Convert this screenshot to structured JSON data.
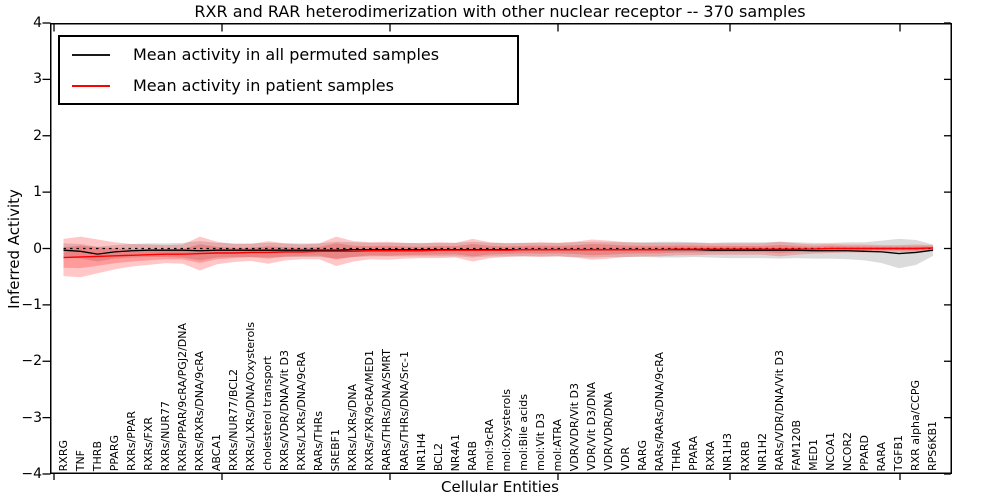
{
  "title": "RXR and RAR heterodimerization with other nuclear receptor -- 370 samples",
  "axes": {
    "ylabel": "Inferred Activity",
    "xlabel": "Cellular Entities",
    "ylim": [
      -4,
      4
    ],
    "yticks": [
      4,
      3,
      2,
      1,
      0,
      -1,
      -2,
      -3,
      -4
    ],
    "ytick_labels": [
      "4",
      "3",
      "2",
      "1",
      "0",
      "−1",
      "−2",
      "−3",
      "−4"
    ]
  },
  "legend": {
    "items": [
      {
        "label": "Mean activity in all permuted samples",
        "color": "#1a1a1a"
      },
      {
        "label": "Mean activity in patient samples",
        "color": "#ff0000"
      }
    ]
  },
  "chart_data": {
    "type": "line",
    "title": "RXR and RAR heterodimerization with other nuclear receptor -- 370 samples",
    "xlabel": "Cellular Entities",
    "ylabel": "Inferred Activity",
    "ylim": [
      -4,
      4
    ],
    "grid": false,
    "legend_position": "upper left",
    "categories": [
      "RXRG",
      "TNF",
      "THRB",
      "PPARG",
      "RXRs/PPAR",
      "RXRs/FXR",
      "RXRs/NUR77",
      "RXRs/PPAR/9cRA/PGJ2/DNA",
      "RXRs/RXRs/DNA/9cRA",
      "ABCA1",
      "RXRs/NUR77/BCL2",
      "RXRs/LXRs/DNA/Oxysterols",
      "cholesterol transport",
      "RXRs/VDR/DNA/Vit D3",
      "RXRs/LXRs/DNA/9cRA",
      "RARs/THRs",
      "SREBF1",
      "RXRs/LXRs/DNA",
      "RXRs/FXR/9cRA/MED1",
      "RARs/THRs/DNA/SMRT",
      "RARs/THRs/DNA/Src-1",
      "NR1H4",
      "BCL2",
      "NR4A1",
      "RARB",
      "mol:9cRA",
      "mol:Oxysterols",
      "mol:Bile acids",
      "mol:Vit D3",
      "mol:ATRA",
      "VDR/VDR/Vit D3",
      "VDR/Vit D3/DNA",
      "VDR/VDR/DNA",
      "VDR",
      "RARG",
      "RARs/RARs/DNA/9cRA",
      "THRA",
      "PPARA",
      "RXRA",
      "NR1H3",
      "RXRB",
      "NR1H2",
      "RARs/VDR/DNA/Vit D3",
      "FAM120B",
      "MED1",
      "NCOA1",
      "NCOR2",
      "PPARD",
      "RARA",
      "TGFB1",
      "RXR alpha/CCPG",
      "RPS6KB1"
    ],
    "series": [
      {
        "name": "Mean activity in all permuted samples",
        "color": "#000000",
        "band_color": "rgba(90,90,90,0.22)",
        "values": [
          -0.03,
          -0.05,
          -0.1,
          -0.06,
          -0.04,
          -0.03,
          -0.03,
          -0.03,
          -0.04,
          -0.03,
          -0.03,
          -0.03,
          -0.03,
          -0.03,
          -0.03,
          -0.03,
          -0.03,
          -0.02,
          -0.02,
          -0.02,
          -0.02,
          -0.02,
          -0.02,
          -0.02,
          -0.02,
          -0.02,
          -0.02,
          -0.02,
          -0.02,
          -0.02,
          -0.02,
          -0.02,
          -0.02,
          -0.02,
          -0.02,
          -0.02,
          -0.02,
          -0.02,
          -0.03,
          -0.03,
          -0.03,
          -0.03,
          -0.03,
          -0.03,
          -0.04,
          -0.04,
          -0.04,
          -0.05,
          -0.06,
          -0.09,
          -0.07,
          -0.03
        ],
        "band_halfwidth": [
          0.12,
          0.13,
          0.13,
          0.12,
          0.12,
          0.12,
          0.12,
          0.13,
          0.17,
          0.13,
          0.12,
          0.12,
          0.13,
          0.12,
          0.12,
          0.12,
          0.15,
          0.13,
          0.12,
          0.12,
          0.12,
          0.12,
          0.12,
          0.12,
          0.14,
          0.12,
          0.12,
          0.12,
          0.12,
          0.12,
          0.13,
          0.14,
          0.13,
          0.13,
          0.13,
          0.14,
          0.14,
          0.13,
          0.13,
          0.14,
          0.14,
          0.14,
          0.15,
          0.14,
          0.14,
          0.14,
          0.15,
          0.16,
          0.2,
          0.26,
          0.22,
          0.1
        ]
      },
      {
        "name": "Mean activity in patient samples",
        "color": "#ff0000",
        "band_color": "rgba(255,0,0,0.22)",
        "values": [
          -0.16,
          -0.15,
          -0.14,
          -0.13,
          -0.12,
          -0.11,
          -0.1,
          -0.1,
          -0.09,
          -0.08,
          -0.08,
          -0.07,
          -0.07,
          -0.06,
          -0.06,
          -0.05,
          -0.05,
          -0.05,
          -0.04,
          -0.04,
          -0.04,
          -0.04,
          -0.03,
          -0.03,
          -0.03,
          -0.03,
          -0.03,
          -0.02,
          -0.02,
          -0.02,
          -0.02,
          -0.02,
          -0.02,
          -0.02,
          -0.02,
          -0.02,
          -0.01,
          -0.01,
          -0.01,
          -0.01,
          -0.01,
          -0.01,
          -0.01,
          -0.01,
          -0.01,
          0,
          0,
          0,
          0,
          0,
          0,
          0.01
        ],
        "band_halfwidth": [
          0.33,
          0.36,
          0.3,
          0.24,
          0.2,
          0.18,
          0.16,
          0.17,
          0.3,
          0.2,
          0.16,
          0.15,
          0.2,
          0.15,
          0.13,
          0.14,
          0.26,
          0.18,
          0.15,
          0.16,
          0.14,
          0.13,
          0.14,
          0.13,
          0.2,
          0.14,
          0.12,
          0.12,
          0.13,
          0.12,
          0.14,
          0.18,
          0.16,
          0.13,
          0.12,
          0.12,
          0.11,
          0.11,
          0.1,
          0.1,
          0.1,
          0.1,
          0.13,
          0.1,
          0.08,
          0.08,
          0.07,
          0.07,
          0.06,
          0.06,
          0.07,
          0.05
        ]
      }
    ],
    "baseline": {
      "value": 0,
      "style": "dashed",
      "color": "#000000"
    }
  }
}
